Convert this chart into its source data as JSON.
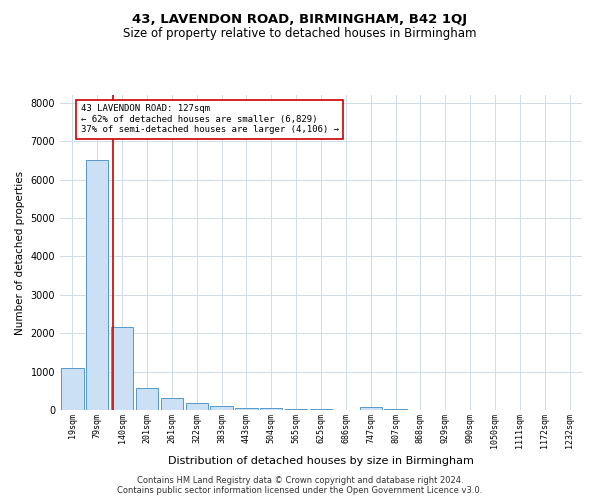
{
  "title1": "43, LAVENDON ROAD, BIRMINGHAM, B42 1QJ",
  "title2": "Size of property relative to detached houses in Birmingham",
  "xlabel": "Distribution of detached houses by size in Birmingham",
  "ylabel": "Number of detached properties",
  "bar_labels": [
    "19sqm",
    "79sqm",
    "140sqm",
    "201sqm",
    "261sqm",
    "322sqm",
    "383sqm",
    "443sqm",
    "504sqm",
    "565sqm",
    "625sqm",
    "686sqm",
    "747sqm",
    "807sqm",
    "868sqm",
    "929sqm",
    "990sqm",
    "1050sqm",
    "1111sqm",
    "1172sqm",
    "1232sqm"
  ],
  "bar_values": [
    1100,
    6500,
    2150,
    580,
    300,
    180,
    100,
    50,
    50,
    30,
    20,
    0,
    80,
    20,
    0,
    0,
    0,
    0,
    0,
    0,
    0
  ],
  "bar_color": "#cce0f5",
  "bar_edge_color": "#5599cc",
  "vline_x": 1.62,
  "vline_color": "#cc0000",
  "annotation_line1": "43 LAVENDON ROAD: 127sqm",
  "annotation_line2": "← 62% of detached houses are smaller (6,829)",
  "annotation_line3": "37% of semi-detached houses are larger (4,106) →",
  "annotation_box_color": "#cc0000",
  "ylim": [
    0,
    8200
  ],
  "yticks": [
    0,
    1000,
    2000,
    3000,
    4000,
    5000,
    6000,
    7000,
    8000
  ],
  "grid_color": "#d0dde8",
  "footer1": "Contains HM Land Registry data © Crown copyright and database right 2024.",
  "footer2": "Contains public sector information licensed under the Open Government Licence v3.0."
}
